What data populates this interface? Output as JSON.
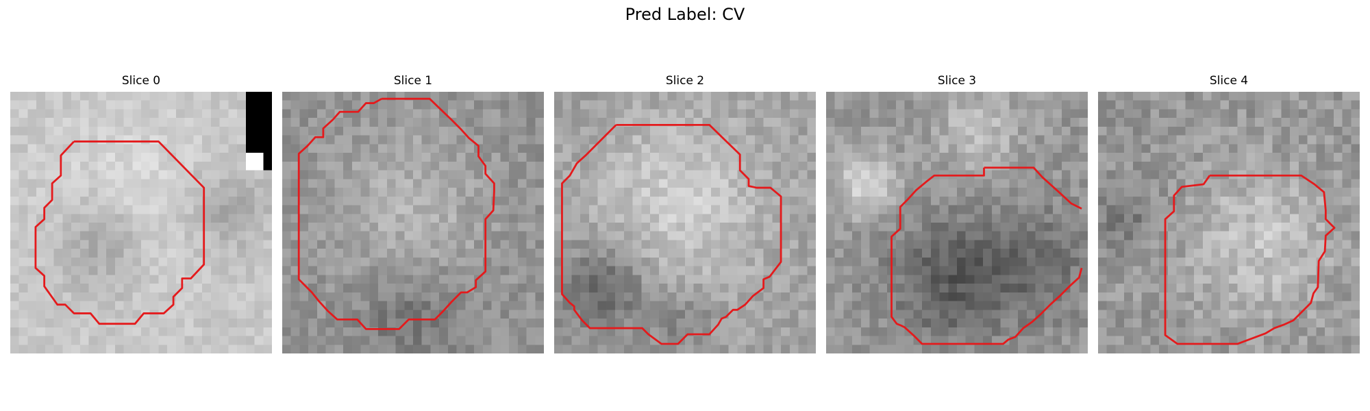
{
  "figure": {
    "title": "Pred Label: CV"
  },
  "panels": [
    {
      "title": "Slice 0"
    },
    {
      "title": "Slice 1"
    },
    {
      "title": "Slice 2"
    },
    {
      "title": "Slice 3"
    },
    {
      "title": "Slice 4"
    }
  ],
  "style": {
    "contour_color": "#e41a1c",
    "colormap": "grayscale"
  }
}
